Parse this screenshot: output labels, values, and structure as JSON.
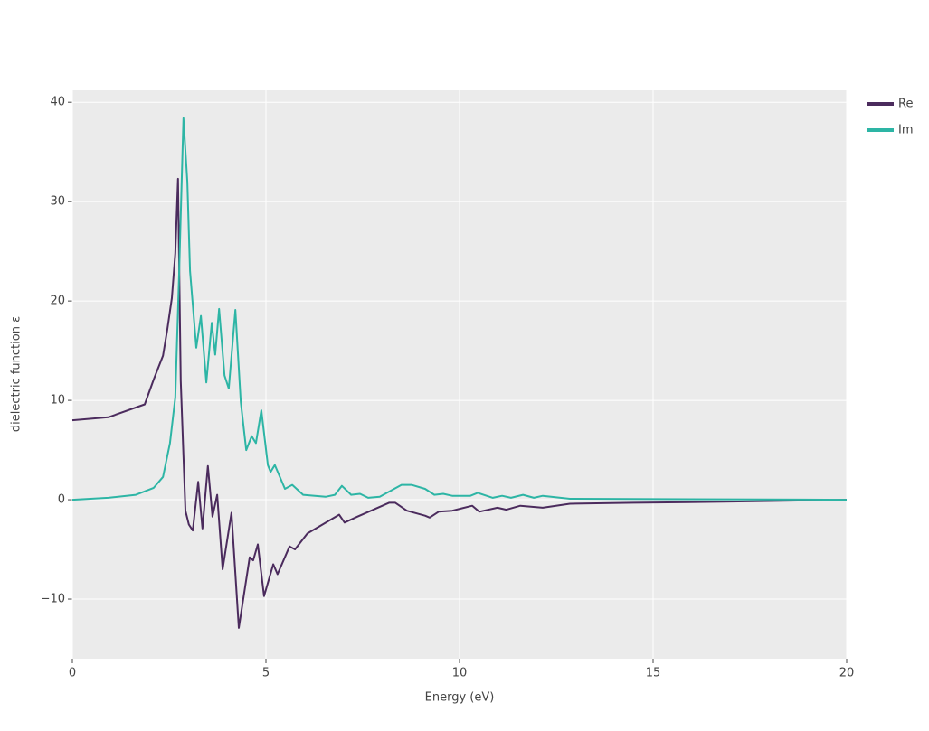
{
  "chart_data": {
    "type": "line",
    "xlabel": "Energy (eV)",
    "ylabel": "dielectric function ε",
    "xlim": [
      0,
      20
    ],
    "ylim": [
      -16,
      41.2
    ],
    "xticks": [
      0,
      5,
      10,
      15,
      20
    ],
    "yticks": [
      {
        "value": -10,
        "label": "−10"
      },
      0,
      10,
      20,
      30,
      40
    ],
    "grid": true,
    "legend": "top-right",
    "background": "#ebebeb",
    "series": [
      {
        "name": "Re",
        "color": "#4b2b5d",
        "x": [
          0,
          0.93,
          1.87,
          2.1,
          2.34,
          2.45,
          2.57,
          2.66,
          2.73,
          2.8,
          2.92,
          3.01,
          3.11,
          3.25,
          3.36,
          3.5,
          3.62,
          3.74,
          3.88,
          4.11,
          4.3,
          4.58,
          4.67,
          4.79,
          4.95,
          5.19,
          5.3,
          5.61,
          5.75,
          6.07,
          6.89,
          7.03,
          7.36,
          8.18,
          8.34,
          8.64,
          9.11,
          9.23,
          9.46,
          9.81,
          10.33,
          10.51,
          10.98,
          11.21,
          11.57,
          12.15,
          12.85,
          14.49,
          16.82,
          20
        ],
        "values": [
          8.0,
          8.3,
          9.6,
          12.1,
          14.5,
          17.1,
          20.3,
          24.8,
          32.3,
          12,
          -1.1,
          -2.5,
          -3.1,
          1.8,
          -2.9,
          3.4,
          -1.7,
          0.5,
          -7.0,
          -1.3,
          -12.9,
          -5.8,
          -6.1,
          -4.5,
          -9.7,
          -6.5,
          -7.5,
          -4.7,
          -5.0,
          -3.4,
          -1.5,
          -2.3,
          -1.7,
          -0.3,
          -0.3,
          -1.1,
          -1.6,
          -1.8,
          -1.2,
          -1.1,
          -0.6,
          -1.2,
          -0.8,
          -1.0,
          -0.6,
          -0.8,
          -0.4,
          -0.3,
          -0.2,
          0
        ]
      },
      {
        "name": "Im",
        "color": "#2db5a5",
        "x": [
          0,
          0.93,
          1.64,
          2.1,
          2.34,
          2.52,
          2.66,
          2.76,
          2.87,
          2.97,
          3.04,
          3.2,
          3.32,
          3.46,
          3.6,
          3.69,
          3.79,
          3.93,
          4.04,
          4.21,
          4.35,
          4.49,
          4.63,
          4.74,
          4.88,
          5.05,
          5.12,
          5.23,
          5.49,
          5.68,
          5.96,
          6.54,
          6.78,
          6.96,
          7.2,
          7.43,
          7.64,
          7.94,
          8.5,
          8.76,
          9.11,
          9.35,
          9.58,
          9.81,
          10.28,
          10.47,
          10.86,
          11.1,
          11.33,
          11.64,
          11.92,
          12.15,
          12.85,
          20
        ],
        "values": [
          0,
          0.2,
          0.5,
          1.2,
          2.3,
          5.7,
          10.3,
          23,
          38.4,
          32,
          23,
          15.3,
          18.5,
          11.8,
          17.8,
          14.6,
          19.2,
          12.5,
          11.2,
          19.1,
          9.8,
          5.0,
          6.4,
          5.7,
          9.0,
          3.5,
          2.8,
          3.5,
          1.1,
          1.5,
          0.5,
          0.3,
          0.5,
          1.4,
          0.5,
          0.6,
          0.2,
          0.3,
          1.5,
          1.5,
          1.1,
          0.5,
          0.6,
          0.4,
          0.4,
          0.7,
          0.2,
          0.4,
          0.2,
          0.5,
          0.2,
          0.4,
          0.1,
          0
        ]
      }
    ]
  }
}
